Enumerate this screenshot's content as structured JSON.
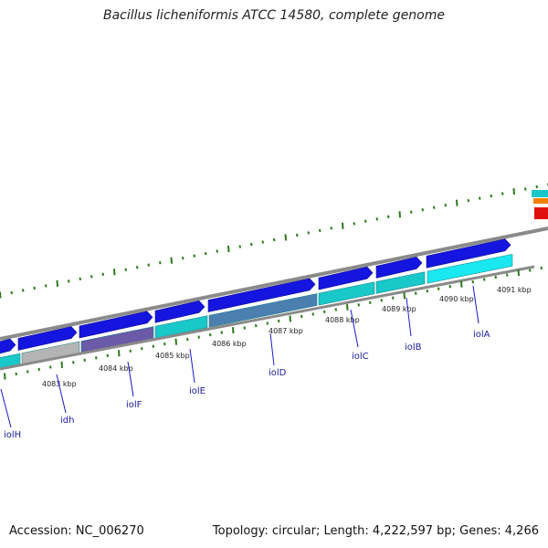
{
  "title": "Bacillus licheniformis ATCC 14580, complete genome",
  "footer": {
    "accession": "Accession: NC_006270",
    "summary": "Topology: circular; Length: 4,222,597 bp; Genes: 4,266"
  },
  "scale_labels": [
    "4083 kbp",
    "4084 kbp",
    "4085 kbp",
    "4086 kbp",
    "4087 kbp",
    "4088 kbp",
    "4089 kbp",
    "4090 kbp",
    "4091 kbp"
  ],
  "genes": [
    "iolH",
    "idh",
    "iolF",
    "iolE",
    "iolD",
    "iolC",
    "iolB",
    "iolA"
  ],
  "colors": {
    "cds_forward": "#1515e0",
    "gene_cyan": "#19c8c8",
    "gene_grey": "#b4b4b4",
    "gene_steel": "#4a7fb0",
    "backbone": "#8a8a8a",
    "tick": "#2a7a1a",
    "label_line": "#1a1ad0",
    "label_text": "#1a1a9a"
  },
  "icons": [
    "forward-arrow-icon"
  ]
}
